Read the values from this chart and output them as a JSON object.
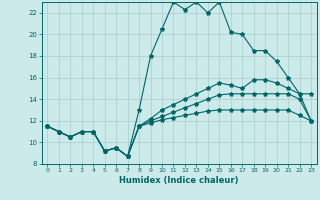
{
  "xlabel": "Humidex (Indice chaleur)",
  "xlim": [
    -0.5,
    23.5
  ],
  "ylim": [
    8,
    23
  ],
  "yticks": [
    8,
    10,
    12,
    14,
    16,
    18,
    20,
    22
  ],
  "xticks": [
    0,
    1,
    2,
    3,
    4,
    5,
    6,
    7,
    8,
    9,
    10,
    11,
    12,
    13,
    14,
    15,
    16,
    17,
    18,
    19,
    20,
    21,
    22,
    23
  ],
  "bg_color": "#cceaea",
  "grid_color": "#aacccc",
  "line_color": "#006666",
  "line1_x": [
    0,
    1,
    2,
    3,
    4,
    5,
    6,
    7,
    8,
    9,
    10,
    11,
    12,
    13,
    14,
    15,
    16,
    17,
    18,
    19,
    20,
    21,
    22,
    23
  ],
  "line1_y": [
    11.5,
    11.0,
    10.5,
    11.0,
    11.0,
    9.2,
    9.5,
    8.7,
    13.0,
    18.0,
    20.5,
    23.0,
    22.3,
    23.0,
    22.0,
    23.0,
    20.2,
    20.0,
    18.5,
    18.5,
    17.5,
    16.0,
    14.5,
    14.5
  ],
  "line2_x": [
    0,
    1,
    2,
    3,
    4,
    5,
    6,
    7,
    8,
    9,
    10,
    11,
    12,
    13,
    14,
    15,
    16,
    17,
    18,
    19,
    20,
    21,
    22,
    23
  ],
  "line2_y": [
    11.5,
    11.0,
    10.5,
    11.0,
    11.0,
    9.2,
    9.5,
    8.7,
    11.5,
    12.2,
    13.0,
    13.5,
    14.0,
    14.5,
    15.0,
    15.5,
    15.3,
    15.0,
    15.8,
    15.8,
    15.5,
    15.0,
    14.5,
    12.0
  ],
  "line3_x": [
    0,
    1,
    2,
    3,
    4,
    5,
    6,
    7,
    8,
    9,
    10,
    11,
    12,
    13,
    14,
    15,
    16,
    17,
    18,
    19,
    20,
    21,
    22,
    23
  ],
  "line3_y": [
    11.5,
    11.0,
    10.5,
    11.0,
    11.0,
    9.2,
    9.5,
    8.7,
    11.5,
    12.0,
    12.4,
    12.8,
    13.2,
    13.6,
    14.0,
    14.4,
    14.5,
    14.5,
    14.5,
    14.5,
    14.5,
    14.5,
    14.0,
    12.0
  ],
  "line4_x": [
    0,
    1,
    2,
    3,
    4,
    5,
    6,
    7,
    8,
    9,
    10,
    11,
    12,
    13,
    14,
    15,
    16,
    17,
    18,
    19,
    20,
    21,
    22,
    23
  ],
  "line4_y": [
    11.5,
    11.0,
    10.5,
    11.0,
    11.0,
    9.2,
    9.5,
    8.7,
    11.5,
    11.8,
    12.1,
    12.3,
    12.5,
    12.7,
    12.9,
    13.0,
    13.0,
    13.0,
    13.0,
    13.0,
    13.0,
    13.0,
    12.5,
    12.0
  ]
}
